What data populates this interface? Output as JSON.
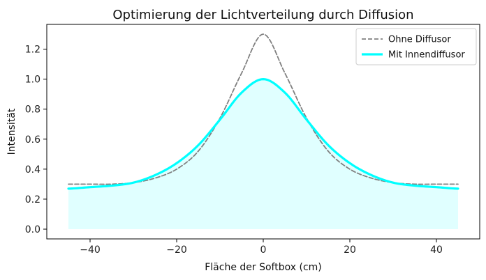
{
  "chart_data": {
    "type": "line",
    "title": "Optimierung der Lichtverteilung durch Diffusion",
    "xlabel": "Fläche der Softbox (cm)",
    "ylabel": "Intensität",
    "xlim": [
      -50,
      50
    ],
    "ylim": [
      -0.065,
      1.365
    ],
    "xticks": [
      -40,
      -20,
      0,
      20,
      40
    ],
    "xtick_labels": [
      "−40",
      "−20",
      "0",
      "20",
      "40"
    ],
    "yticks": [
      0.0,
      0.2,
      0.4,
      0.6,
      0.8,
      1.0,
      1.2
    ],
    "ytick_labels": [
      "0.0",
      "0.2",
      "0.4",
      "0.6",
      "0.8",
      "1.0",
      "1.2"
    ],
    "grid": false,
    "legend_position": "top-right",
    "x": [
      -45,
      -40,
      -35,
      -30,
      -25,
      -20,
      -15,
      -10,
      -5,
      0,
      5,
      10,
      15,
      20,
      25,
      30,
      35,
      40,
      45
    ],
    "series": [
      {
        "name": "Ohne Diffusor",
        "style": "dashed",
        "color": "#808080",
        "values": [
          0.3,
          0.3,
          0.3,
          0.31,
          0.34,
          0.4,
          0.52,
          0.74,
          1.04,
          1.3,
          1.04,
          0.74,
          0.52,
          0.4,
          0.34,
          0.31,
          0.3,
          0.3,
          0.3
        ]
      },
      {
        "name": "Mit Innendiffusor",
        "style": "solid",
        "color": "#00FFFF",
        "fill": "#E0FFFF",
        "values": [
          0.27,
          0.28,
          0.29,
          0.31,
          0.36,
          0.44,
          0.56,
          0.73,
          0.91,
          1.0,
          0.91,
          0.73,
          0.56,
          0.44,
          0.36,
          0.31,
          0.29,
          0.28,
          0.27
        ]
      }
    ],
    "fill_between": {
      "series": "Mit Innendiffusor",
      "y0": 0.0
    }
  }
}
